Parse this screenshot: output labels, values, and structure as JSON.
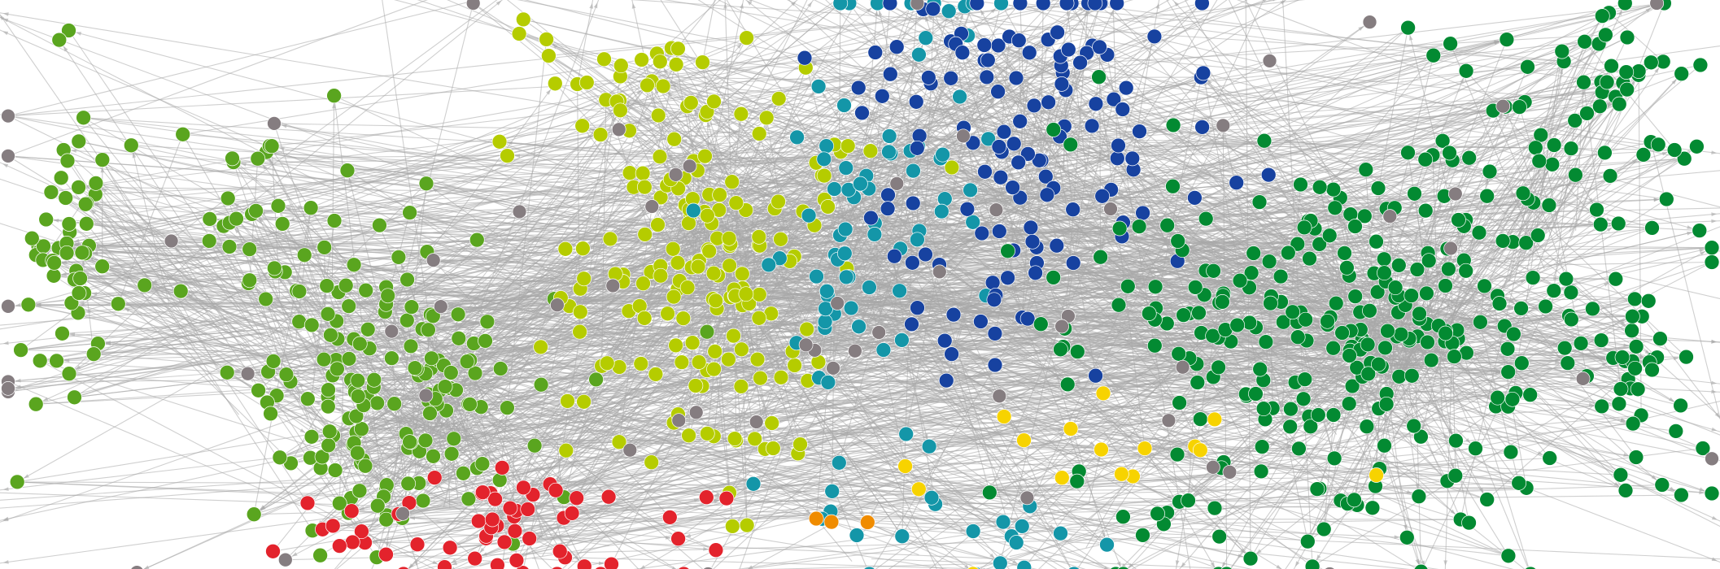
{
  "diagram": {
    "type": "directed-network-graph",
    "background": "#ffffff",
    "edge_color": "#a8a8a8",
    "labels_visible": false,
    "communities": [
      {
        "name": "lime-green-cluster-left",
        "color": "#5aa51f"
      },
      {
        "name": "yellow-green-cluster-center",
        "color": "#b5cc00"
      },
      {
        "name": "teal-cluster",
        "color": "#1496a8"
      },
      {
        "name": "dark-blue-cluster",
        "color": "#1742a0"
      },
      {
        "name": "green-cluster-right",
        "color": "#038a32"
      },
      {
        "name": "red-cluster",
        "color": "#e3232c"
      },
      {
        "name": "yellow-cluster",
        "color": "#f7d300"
      },
      {
        "name": "orange-cluster",
        "color": "#f08c00"
      },
      {
        "name": "grey-nodes",
        "color": "#857d80"
      }
    ]
  }
}
